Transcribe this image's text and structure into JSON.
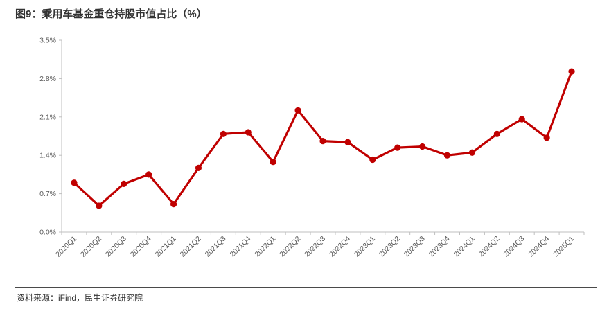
{
  "title": "图9：乘用车基金重仓持股市值占比（%）",
  "source": "资料来源：iFind，民生证券研究院",
  "colors": {
    "series": "#c00000",
    "axis": "#bfbfbf",
    "text": "#595959"
  },
  "chart_data": {
    "type": "line",
    "title": "图9：乘用车基金重仓持股市值占比（%）",
    "xlabel": "",
    "ylabel": "",
    "ylim": [
      0,
      3.5
    ],
    "yticks": [
      "0.0%",
      "0.7%",
      "1.4%",
      "2.1%",
      "2.8%",
      "3.5%"
    ],
    "grid": false,
    "legend": "none",
    "categories": [
      "2020Q1",
      "2020Q2",
      "2020Q3",
      "2020Q4",
      "2021Q1",
      "2021Q2",
      "2021Q3",
      "2021Q4",
      "2022Q1",
      "2022Q2",
      "2022Q3",
      "2022Q4",
      "2023Q1",
      "2023Q2",
      "2023Q3",
      "2023Q4",
      "2024Q1",
      "2024Q2",
      "2024Q3",
      "2024Q4",
      "2025Q1"
    ],
    "series": [
      {
        "values": [
          0.9,
          0.48,
          0.88,
          1.05,
          0.51,
          1.17,
          1.79,
          1.82,
          1.28,
          2.22,
          1.66,
          1.64,
          1.32,
          1.54,
          1.56,
          1.4,
          1.45,
          1.79,
          2.06,
          1.72,
          2.93
        ]
      }
    ]
  }
}
